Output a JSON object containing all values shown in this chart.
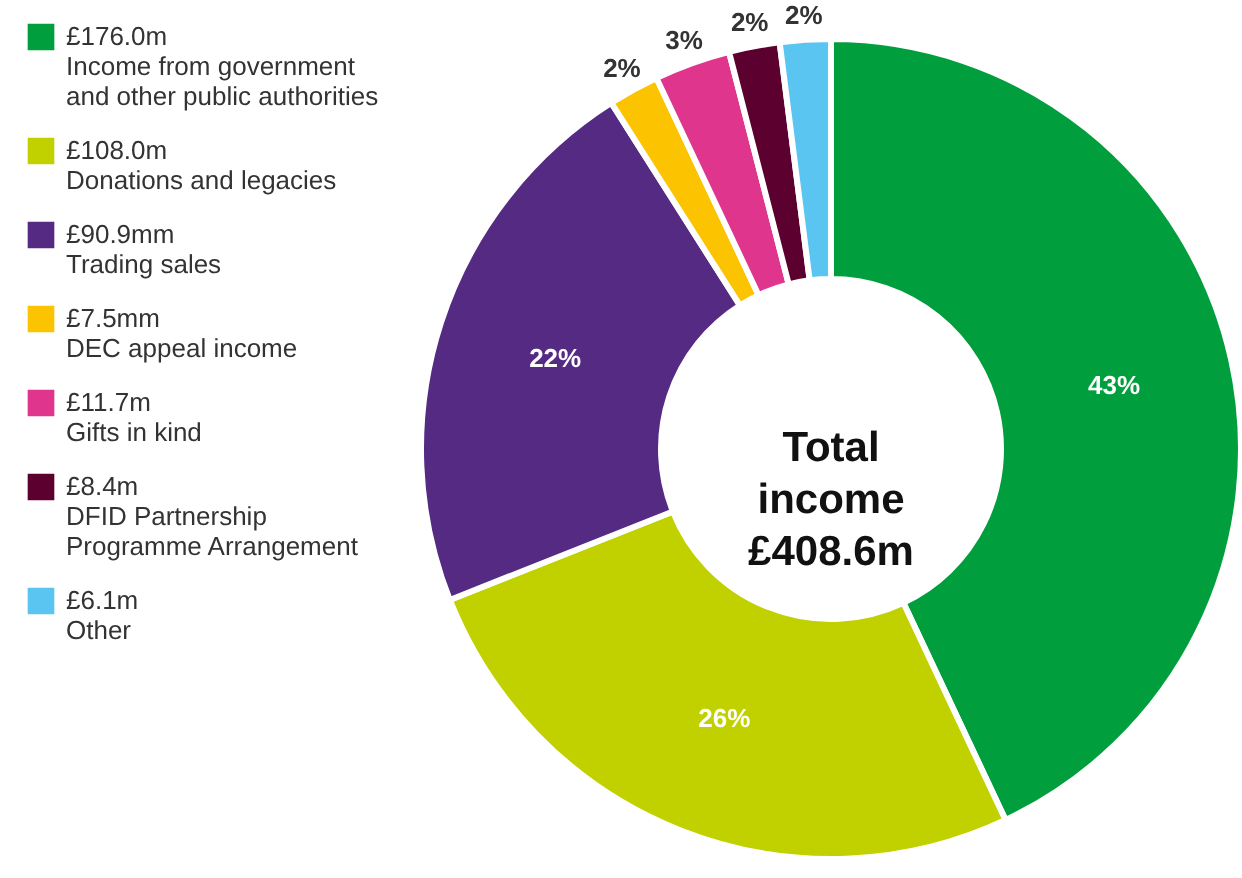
{
  "chart_data": {
    "type": "donut",
    "categories": [
      "£176.0m\nIncome from government\nand other public authorities",
      "£108.0m\nDonations and legacies",
      "£90.9mm\nTrading sales",
      "£7.5mm\nDEC appeal income",
      "£11.7m\nGifts in kind",
      "£8.4m\nDFID Partnership\nProgramme Arrangement",
      "£6.1m\nOther"
    ],
    "values": [
      43,
      26,
      22,
      2,
      3,
      2,
      2
    ],
    "colors": [
      "#009e3d",
      "#c1d100",
      "#552a83",
      "#fcc300",
      "#e0358d",
      "#5c0030",
      "#5bc5f2"
    ],
    "value_labels": [
      "43%",
      "26%",
      "22%",
      "2%",
      "3%",
      "2%",
      "2%"
    ],
    "annotations": [
      "Total\nincome\n£408.6m"
    ],
    "legend": "left"
  }
}
